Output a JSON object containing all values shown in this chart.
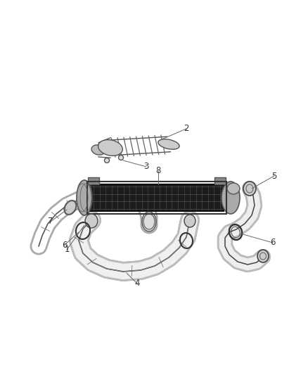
{
  "background_color": "#ffffff",
  "fig_width": 4.38,
  "fig_height": 5.33,
  "dpi": 100,
  "line_color": "#555555",
  "dark_color": "#1a1a1a",
  "label_color": "#333333",
  "label_fontsize": 8.5
}
